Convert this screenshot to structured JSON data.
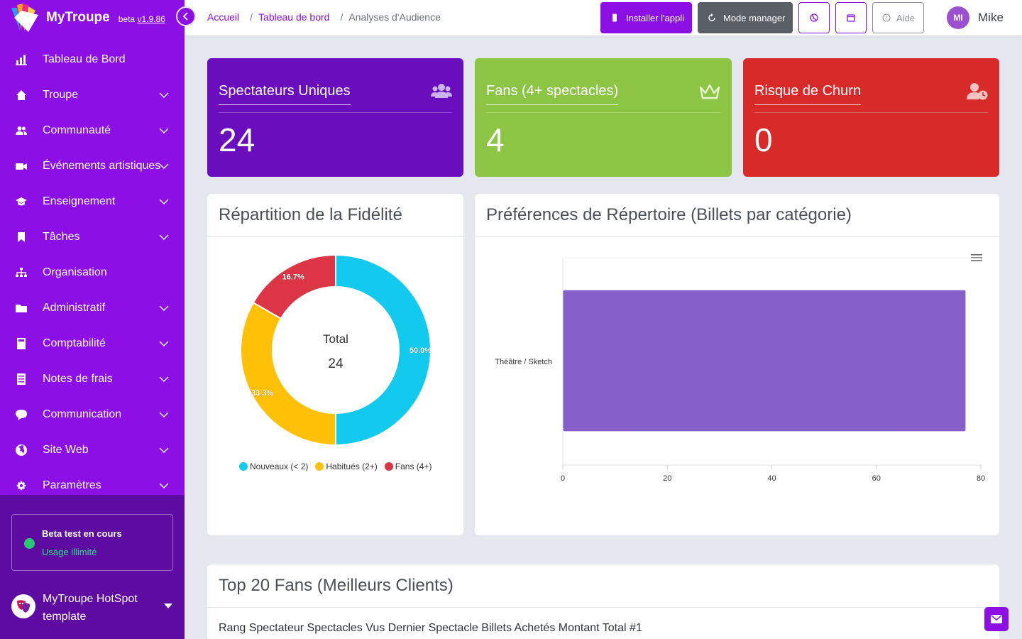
{
  "brand": {
    "name": "MyTroupe",
    "beta_prefix": "beta",
    "version": "v1.9.86"
  },
  "sidebar": {
    "items": [
      {
        "label": "Tableau de Bord",
        "icon": "chart-bar-icon",
        "has_children": false
      },
      {
        "label": "Troupe",
        "icon": "house-icon",
        "has_children": true
      },
      {
        "label": "Communauté",
        "icon": "users-icon",
        "has_children": true
      },
      {
        "label": "Événements artistiques",
        "icon": "video-camera-icon",
        "has_children": true
      },
      {
        "label": "Enseignement",
        "icon": "graduation-cap-icon",
        "has_children": true
      },
      {
        "label": "Tâches",
        "icon": "bookmark-check-icon",
        "has_children": true
      },
      {
        "label": "Organisation",
        "icon": "sitemap-icon",
        "has_children": false
      },
      {
        "label": "Administratif",
        "icon": "folder-icon",
        "has_children": true
      },
      {
        "label": "Comptabilité",
        "icon": "calculator-icon",
        "has_children": true
      },
      {
        "label": "Notes de frais",
        "icon": "receipt-icon",
        "has_children": true
      },
      {
        "label": "Communication",
        "icon": "chat-bubble-icon",
        "has_children": true
      },
      {
        "label": "Site Web",
        "icon": "globe-icon",
        "has_children": true
      },
      {
        "label": "Paramètres",
        "icon": "gear-icon",
        "has_children": true
      }
    ],
    "beta": {
      "title": "Beta test en cours",
      "subtitle": "Usage illimité"
    },
    "org": {
      "name": "MyTroupe HotSpot template"
    }
  },
  "topbar": {
    "breadcrumb": [
      {
        "label": "Accueil",
        "link": true
      },
      {
        "label": "Tableau de bord",
        "link": true
      },
      {
        "label": "Analyses d'Audience",
        "link": false
      }
    ],
    "install_label": "Installer l'appli",
    "manager_label": "Mode manager",
    "help_label": "Aide",
    "user_initials": "MI",
    "user_name": "Mike"
  },
  "stats": [
    {
      "title": "Spectateurs Uniques",
      "value": "24",
      "icon": "users-group-icon",
      "color": "#6a0dbd"
    },
    {
      "title": "Fans (4+ spectacles)",
      "value": "4",
      "icon": "crown-icon",
      "color": "#8cc443"
    },
    {
      "title": "Risque de Churn",
      "value": "0",
      "icon": "user-clock-icon",
      "color": "#d92a2a"
    }
  ],
  "fidelity": {
    "title": "Répartition de la Fidélité",
    "center_label": "Total",
    "center_value": "24"
  },
  "repertoire": {
    "title": "Préférences de Répertoire (Billets par catégorie)"
  },
  "top_fans": {
    "title": "Top 20 Fans (Meilleurs Clients)",
    "header_text": "Rang Spectateur Spectacles Vus Dernier Spectacle Billets Achetés Montant Total #1"
  },
  "chart_data": [
    {
      "type": "pie",
      "donut": true,
      "title": "Répartition de la Fidélité",
      "categories": [
        "Nouveaux (< 2)",
        "Habitués (2+)",
        "Fans (4+)"
      ],
      "values": [
        50.0,
        33.3,
        16.7
      ],
      "labels": [
        "50.0%",
        "33.3%",
        "16.7%"
      ],
      "colors": [
        "#12c9ee",
        "#ffc107",
        "#dc3545"
      ],
      "legend": "bottom"
    },
    {
      "type": "bar",
      "orientation": "horizontal",
      "title": "Préférences de Répertoire (Billets par catégorie)",
      "categories": [
        "Théâtre / Sketch"
      ],
      "values": [
        77
      ],
      "xlim": [
        0,
        80
      ],
      "xticks": [
        0,
        20,
        40,
        60,
        80
      ],
      "color": "#8560c9",
      "grid": true
    }
  ]
}
